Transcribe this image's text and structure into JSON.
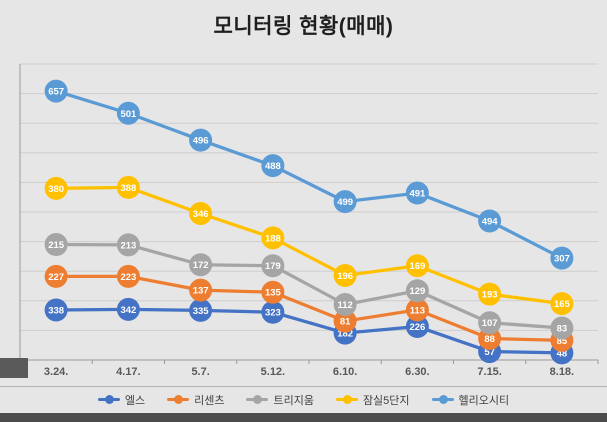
{
  "chart_data": {
    "type": "line",
    "stacked": true,
    "title": "모니터링 현황(매매)",
    "categories": [
      "3.24.",
      "4.17.",
      "5.7.",
      "5.12.",
      "6.10.",
      "6.30.",
      "7.15.",
      "8.18."
    ],
    "series": [
      {
        "name": "엘스",
        "color": "#4472C4",
        "values": [
          338,
          342,
          335,
          323,
          182,
          226,
          57,
          48
        ]
      },
      {
        "name": "리센츠",
        "color": "#ED7D31",
        "values": [
          227,
          223,
          137,
          135,
          81,
          113,
          88,
          85
        ]
      },
      {
        "name": "트리지움",
        "color": "#A5A5A5",
        "values": [
          215,
          213,
          172,
          179,
          112,
          129,
          107,
          83
        ]
      },
      {
        "name": "잠실5단지",
        "color": "#FFC000",
        "values": [
          380,
          388,
          346,
          188,
          196,
          169,
          193,
          165
        ]
      },
      {
        "name": "헬리오시티",
        "color": "#5B9BD5",
        "values": [
          657,
          501,
          496,
          488,
          499,
          491,
          494,
          307
        ]
      }
    ],
    "ylim": [
      0,
      2000
    ],
    "gridline_step": 200,
    "grid": true,
    "y_axis_labels_visible": false,
    "legend_position": "bottom",
    "data_labels": "on-marker"
  },
  "style": {
    "background_color": "#E7E6E6",
    "gridline_color": "#CFCECD",
    "axis_color": "#9A9A9A",
    "title_color": "#1F1F1F",
    "axis_label_color": "#595959",
    "data_label_color": "#FFFFFF",
    "legend_text_color": "#404040",
    "bottom_bar_color": "#4B4B4B"
  }
}
